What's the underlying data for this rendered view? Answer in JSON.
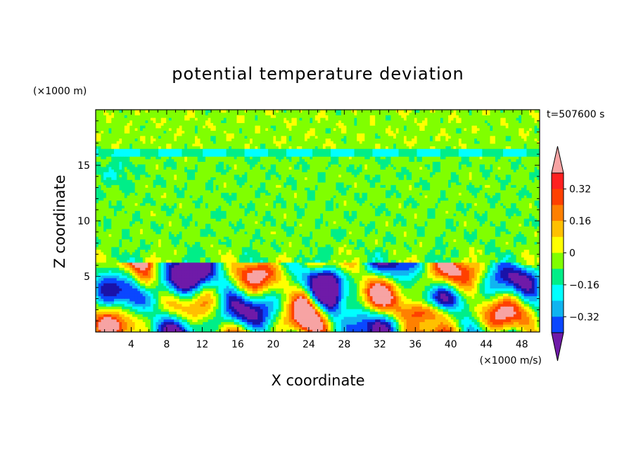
{
  "chart_data": {
    "type": "heatmap",
    "title": "potential temperature deviation",
    "xlabel": "X coordinate",
    "ylabel": "Z coordinate",
    "x_unit": "(×1000 m/s)",
    "y_unit": "(×1000 m)",
    "time_label": "t=507600 s",
    "xlim": [
      0,
      50
    ],
    "ylim": [
      0,
      20
    ],
    "xticks": [
      4,
      8,
      12,
      16,
      20,
      24,
      28,
      32,
      36,
      40,
      44,
      48
    ],
    "yticks": [
      5,
      10,
      15
    ],
    "colorbar": {
      "levels": [
        -0.48,
        -0.4,
        -0.32,
        -0.24,
        -0.16,
        -0.08,
        0,
        0.08,
        0.16,
        0.24,
        0.32,
        0.4,
        0.48
      ],
      "colors": [
        "#6f1aa8",
        "#1a13a8",
        "#0a47ff",
        "#10b4f0",
        "#00ffff",
        "#00ee88",
        "#80ff00",
        "#ffff00",
        "#ffc000",
        "#ff8000",
        "#ff4000",
        "#ff2020",
        "#f7a3a3"
      ],
      "tick_labels": [
        "0.32",
        "0.16",
        "0",
        "−0.16",
        "−0.32"
      ],
      "tick_values": [
        0.32,
        0.16,
        0,
        -0.16,
        -0.32
      ],
      "extend": "both"
    }
  }
}
